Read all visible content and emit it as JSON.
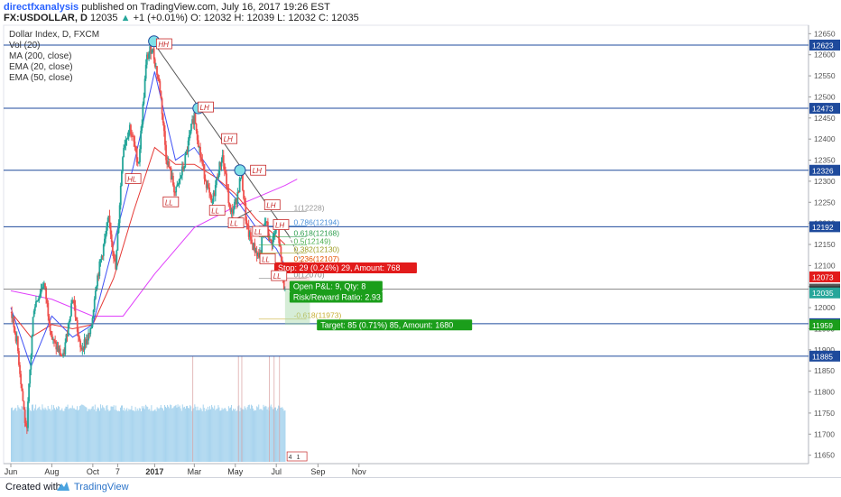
{
  "header": {
    "author": "directfxanalysis",
    "published": "published on TradingView.com, July 16, 2017 19:26 EST",
    "symbol": "FX:USDOLLAR, D",
    "last": "12035",
    "change": "+1 (+0.01%)",
    "ohlc": "O: 12032 H: 12039 L: 12032 C: 12035"
  },
  "legend": {
    "title": "Dollar Index, D, FXCM",
    "lines": [
      "Vol (20)",
      "MA (200, close)",
      "EMA (20, close)",
      "EMA (50, close)"
    ]
  },
  "footer": {
    "created_with": "Created with",
    "brand": "TradingView"
  },
  "colors": {
    "up": "#26a69a",
    "down": "#ef5350",
    "ema20": "#3f51f5",
    "ema50": "#e53935",
    "ma200": "#e040fb",
    "level": "#1e4a9c",
    "volume": "#a8d4ee",
    "trend": "#555555",
    "stop": "#e21b1b",
    "target": "#1b9e1b"
  },
  "chart_data": {
    "type": "candlestick",
    "title": "Dollar Index, D, FXCM",
    "x_ticks": [
      "Jun",
      "Aug",
      "Oct",
      "7",
      "2017",
      "Mar",
      "May",
      "Jul",
      "Sep",
      "Nov"
    ],
    "y_ticks": [
      "12650",
      "12600",
      "12550",
      "12500",
      "12450",
      "12400",
      "12350",
      "12300",
      "12250",
      "12200",
      "12150",
      "12100",
      "12050",
      "12000",
      "11950",
      "11900",
      "11850",
      "11800",
      "11750",
      "11700",
      "11650"
    ],
    "ylim": [
      11630,
      12670
    ],
    "price_path": [
      [
        "2016-06-01",
        11990
      ],
      [
        "2016-06-10",
        11920
      ],
      [
        "2016-06-24",
        11700
      ],
      [
        "2016-07-05",
        12000
      ],
      [
        "2016-07-20",
        12060
      ],
      [
        "2016-08-02",
        11920
      ],
      [
        "2016-08-18",
        11880
      ],
      [
        "2016-09-01",
        12030
      ],
      [
        "2016-09-12",
        11900
      ],
      [
        "2016-09-28",
        11940
      ],
      [
        "2016-10-05",
        12050
      ],
      [
        "2016-10-25",
        12210
      ],
      [
        "2016-11-04",
        12090
      ],
      [
        "2016-11-15",
        12380
      ],
      [
        "2016-11-25",
        12430
      ],
      [
        "2016-12-08",
        12340
      ],
      [
        "2016-12-20",
        12590
      ],
      [
        "2016-12-28",
        12620
      ],
      [
        "2017-01-09",
        12520
      ],
      [
        "2017-01-18",
        12360
      ],
      [
        "2017-02-01",
        12270
      ],
      [
        "2017-02-14",
        12340
      ],
      [
        "2017-03-01",
        12460
      ],
      [
        "2017-03-10",
        12360
      ],
      [
        "2017-03-27",
        12240
      ],
      [
        "2017-04-05",
        12320
      ],
      [
        "2017-04-12",
        12360
      ],
      [
        "2017-04-24",
        12220
      ],
      [
        "2017-05-02",
        12250
      ],
      [
        "2017-05-10",
        12320
      ],
      [
        "2017-05-18",
        12190
      ],
      [
        "2017-05-26",
        12150
      ],
      [
        "2017-06-06",
        12120
      ],
      [
        "2017-06-15",
        12210
      ],
      [
        "2017-06-22",
        12150
      ],
      [
        "2017-07-03",
        12190
      ],
      [
        "2017-07-10",
        12080
      ],
      [
        "2017-07-14",
        12035
      ]
    ],
    "ema20": [
      [
        "2016-06-01",
        12000
      ],
      [
        "2016-07-01",
        11860
      ],
      [
        "2016-08-01",
        11980
      ],
      [
        "2016-09-01",
        11930
      ],
      [
        "2016-10-01",
        11960
      ],
      [
        "2016-11-01",
        12150
      ],
      [
        "2016-12-01",
        12340
      ],
      [
        "2017-01-01",
        12560
      ],
      [
        "2017-02-01",
        12350
      ],
      [
        "2017-03-01",
        12380
      ],
      [
        "2017-04-01",
        12310
      ],
      [
        "2017-05-01",
        12260
      ],
      [
        "2017-06-01",
        12190
      ],
      [
        "2017-07-01",
        12140
      ],
      [
        "2017-07-14",
        12100
      ]
    ],
    "ema50": [
      [
        "2016-06-01",
        11990
      ],
      [
        "2016-07-01",
        11930
      ],
      [
        "2016-08-01",
        11960
      ],
      [
        "2016-09-01",
        11950
      ],
      [
        "2016-10-01",
        11960
      ],
      [
        "2016-11-01",
        12070
      ],
      [
        "2016-12-01",
        12230
      ],
      [
        "2017-01-01",
        12380
      ],
      [
        "2017-02-01",
        12340
      ],
      [
        "2017-03-01",
        12340
      ],
      [
        "2017-04-01",
        12310
      ],
      [
        "2017-05-01",
        12270
      ],
      [
        "2017-06-01",
        12210
      ],
      [
        "2017-07-01",
        12170
      ],
      [
        "2017-07-14",
        12150
      ]
    ],
    "ma200": [
      [
        "2016-06-01",
        12040
      ],
      [
        "2016-08-01",
        12020
      ],
      [
        "2016-10-01",
        11980
      ],
      [
        "2016-11-15",
        11980
      ],
      [
        "2017-01-01",
        12080
      ],
      [
        "2017-03-01",
        12190
      ],
      [
        "2017-05-01",
        12240
      ],
      [
        "2017-07-14",
        12290
      ],
      [
        "2017-08-01",
        12305
      ]
    ],
    "horizontal_levels": [
      "12623",
      "12473",
      "12326",
      "12192",
      "11962",
      "11885"
    ],
    "level_values": [
      12623,
      12473,
      12326,
      12192,
      11962,
      11885
    ],
    "trendlines": [
      {
        "from": [
          "2016-12-29",
          12632
        ],
        "to": [
          "2017-07-20",
          12170
        ]
      },
      {
        "from": [
          "2017-04-20",
          12200
        ],
        "to": [
          "2017-05-25",
          12230
        ]
      }
    ],
    "swing_labels": [
      {
        "text": "HH",
        "x": "2017-01-05",
        "y": 12625
      },
      {
        "text": "HL",
        "x": "2016-11-20",
        "y": 12305
      },
      {
        "text": "LH",
        "x": "2017-03-08",
        "y": 12475
      },
      {
        "text": "LL",
        "x": "2017-01-15",
        "y": 12250
      },
      {
        "text": "LH",
        "x": "2017-04-12",
        "y": 12400
      },
      {
        "text": "LL",
        "x": "2017-03-25",
        "y": 12230
      },
      {
        "text": "LH",
        "x": "2017-05-25",
        "y": 12325
      },
      {
        "text": "LL",
        "x": "2017-04-22",
        "y": 12200
      },
      {
        "text": "LH",
        "x": "2017-06-15",
        "y": 12243
      },
      {
        "text": "LL",
        "x": "2017-05-28",
        "y": 12180
      },
      {
        "text": "LL",
        "x": "2017-06-08",
        "y": 12115
      },
      {
        "text": "LH",
        "x": "2017-06-28",
        "y": 12196
      },
      {
        "text": "LL",
        "x": "2017-06-25",
        "y": 12075
      }
    ],
    "fib_levels": [
      {
        "label": "1(12228)",
        "value": 12228,
        "color": "#999999"
      },
      {
        "label": "0.786(12194)",
        "value": 12194,
        "color": "#4a90d9"
      },
      {
        "label": "0.618(12168)",
        "value": 12168,
        "color": "#2e9e4f"
      },
      {
        "label": "0.5(12149)",
        "value": 12149,
        "color": "#4caf50"
      },
      {
        "label": "0.382(12130)",
        "value": 12130,
        "color": "#9e9d24"
      },
      {
        "label": "0.236(12107)",
        "value": 12107,
        "color": "#e65100"
      },
      {
        "label": "0(12070)",
        "value": 12070,
        "color": "#888888"
      },
      {
        "label": "-0.618(11973)",
        "value": 11973,
        "color": "#c9b037"
      }
    ],
    "fib_partial_label": "(12027)",
    "trade": {
      "stop": "Stop: 29 (0.24%) 29, Amount: 768",
      "pnl": "Open P&L: 9, Qty: 8",
      "rr": "Risk/Reward Ratio: 2.93",
      "target": "Target: 85 (0.71%) 85, Amount: 1680",
      "entry": 12044,
      "stop_value": 12073,
      "target_value": 11959
    },
    "price_labels": [
      {
        "text": "12073",
        "value": 12073,
        "color": "#e21b1b"
      },
      {
        "text": "12044",
        "value": 12044,
        "color": "#555555"
      },
      {
        "text": "12038",
        "value": 12038,
        "color": "#333333"
      },
      {
        "text": "12035",
        "value": 12035,
        "color": "#26a69a"
      },
      {
        "text": "11959",
        "value": 11959,
        "color": "#1b9e1b"
      }
    ],
    "earnings_marks": [
      "4",
      "1"
    ]
  }
}
